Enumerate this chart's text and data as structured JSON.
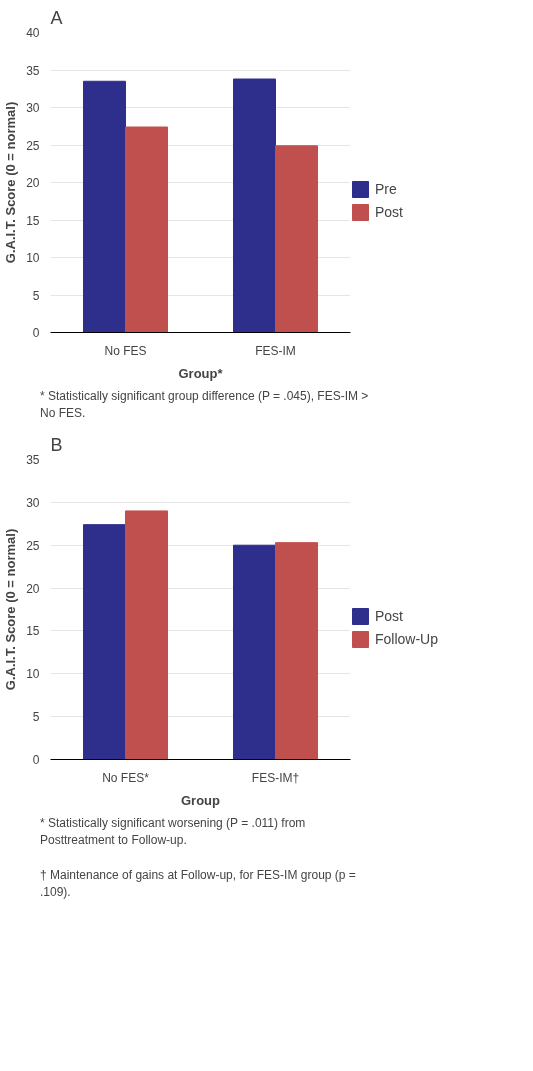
{
  "chart_data": [
    {
      "type": "bar",
      "title": "A",
      "xlabel": "Group*",
      "ylabel": "G.A.I.T. Score (0 = normal)",
      "categories": [
        "No FES",
        "FES-IM"
      ],
      "series": [
        {
          "name": "Pre",
          "color": "#2e2e8c",
          "values": [
            33.5,
            33.8
          ]
        },
        {
          "name": "Post",
          "color": "#c0504d",
          "values": [
            27.4,
            24.9
          ]
        }
      ],
      "ylim": [
        0,
        40
      ],
      "yticks": [
        0,
        5,
        10,
        15,
        20,
        25,
        30,
        35,
        40
      ],
      "grid": "y",
      "legend": "right",
      "annotations": [
        "* Statistically significant group difference (P = .045), FES-IM > No FES."
      ]
    },
    {
      "type": "bar",
      "title": "B",
      "xlabel": "Group",
      "ylabel": "G.A.I.T. Score (0 = normal)",
      "categories": [
        "No FES*",
        "FES-IM†"
      ],
      "series": [
        {
          "name": "Post",
          "color": "#2e2e8c",
          "values": [
            27.4,
            25.0
          ]
        },
        {
          "name": "Follow-Up",
          "color": "#c0504d",
          "values": [
            29.0,
            25.3
          ]
        }
      ],
      "ylim": [
        0,
        35
      ],
      "yticks": [
        0,
        5,
        10,
        15,
        20,
        25,
        30,
        35
      ],
      "grid": "y",
      "legend": "right",
      "annotations": [
        "* Statistically significant worsening (P = .011) from Posttreatment to Follow-up.",
        "† Maintenance of gains at Follow-up, for FES-IM group (p = .109)."
      ]
    }
  ]
}
